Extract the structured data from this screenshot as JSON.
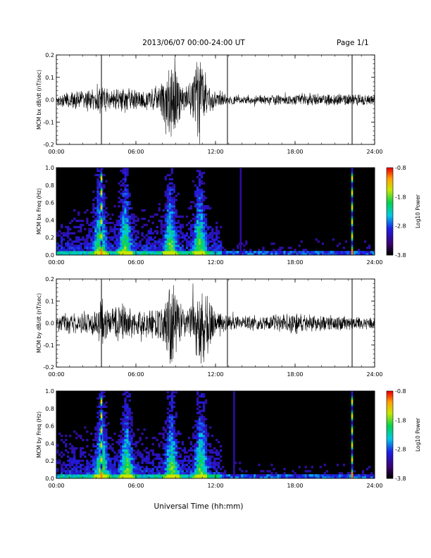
{
  "header": {
    "title": "2013/06/07  00:00-24:00 UT",
    "page": "Page 1/1"
  },
  "x_axis_label": "Universal Time (hh:mm)",
  "x_ticks": [
    "00:00",
    "06:00",
    "12:00",
    "18:00",
    "24:00"
  ],
  "colorbar": {
    "label": "Log10 Power",
    "ticks": [
      "-0.8",
      "-1.8",
      "-2.8",
      "-3.8"
    ]
  },
  "chart_data": [
    {
      "type": "line",
      "title": "",
      "xlabel": "",
      "ylabel": "MCM bx dB/dt (nT/sec)",
      "xlim": [
        0,
        24
      ],
      "ylim": [
        -0.2,
        0.2
      ],
      "y_ticks": [
        "0.2",
        "0.1",
        "0.0",
        "-0.1",
        "-0.2"
      ],
      "grid": false,
      "envelope_hours": [
        0,
        1,
        2,
        3,
        3.3,
        3.5,
        4,
        5,
        6,
        7,
        8,
        8.6,
        9,
        9.5,
        10,
        10.7,
        11,
        11.5,
        12,
        13,
        14,
        16,
        18,
        20,
        22,
        24
      ],
      "envelope_amplitude": [
        0.03,
        0.04,
        0.05,
        0.07,
        0.09,
        0.06,
        0.05,
        0.07,
        0.05,
        0.05,
        0.1,
        0.2,
        0.18,
        0.06,
        0.08,
        0.2,
        0.2,
        0.08,
        0.04,
        0.025,
        0.02,
        0.025,
        0.03,
        0.03,
        0.03,
        0.025
      ],
      "spikes_hours": [
        3.4,
        12.9,
        22.3
      ]
    },
    {
      "type": "heatmap",
      "title": "",
      "xlabel": "",
      "ylabel": "MCM bx Freq (Hz)",
      "xlim": [
        0,
        24
      ],
      "ylim": [
        0,
        1.0
      ],
      "y_ticks": [
        "1.0",
        "0.8",
        "0.6",
        "0.4",
        "0.2",
        "0.0"
      ],
      "color_range": [
        -3.8,
        -0.8
      ],
      "activity_hours": [
        3.3,
        5.2,
        8.6,
        10.8
      ],
      "broadband_lines_hours": [
        3.4,
        13.9,
        22.3
      ]
    },
    {
      "type": "line",
      "title": "",
      "xlabel": "",
      "ylabel": "MCM by dB/dt (nT/sec)",
      "xlim": [
        0,
        24
      ],
      "ylim": [
        -0.2,
        0.2
      ],
      "y_ticks": [
        "0.2",
        "0.1",
        "0.0",
        "-0.1",
        "-0.2"
      ],
      "grid": false,
      "envelope_hours": [
        0,
        1,
        2,
        3,
        3.4,
        4,
        5,
        6,
        7,
        8,
        8.6,
        9,
        9.5,
        10,
        10.8,
        11.2,
        12,
        13,
        14,
        16,
        18,
        20,
        22,
        24
      ],
      "envelope_amplitude": [
        0.04,
        0.05,
        0.05,
        0.07,
        0.12,
        0.07,
        0.1,
        0.06,
        0.07,
        0.1,
        0.2,
        0.2,
        0.07,
        0.08,
        0.2,
        0.2,
        0.06,
        0.04,
        0.035,
        0.04,
        0.05,
        0.04,
        0.035,
        0.03
      ],
      "spikes_hours": [
        3.4,
        12.9,
        22.3
      ]
    },
    {
      "type": "heatmap",
      "title": "",
      "xlabel": "",
      "ylabel": "MCM by Freq (Hz)",
      "xlim": [
        0,
        24
      ],
      "ylim": [
        0,
        1.0
      ],
      "y_ticks": [
        "1.0",
        "0.8",
        "0.6",
        "0.4",
        "0.2",
        "0.0"
      ],
      "color_range": [
        -3.8,
        -0.8
      ],
      "activity_hours": [
        3.4,
        5.3,
        8.7,
        10.9
      ],
      "broadband_lines_hours": [
        3.4,
        13.4,
        22.3
      ]
    }
  ]
}
